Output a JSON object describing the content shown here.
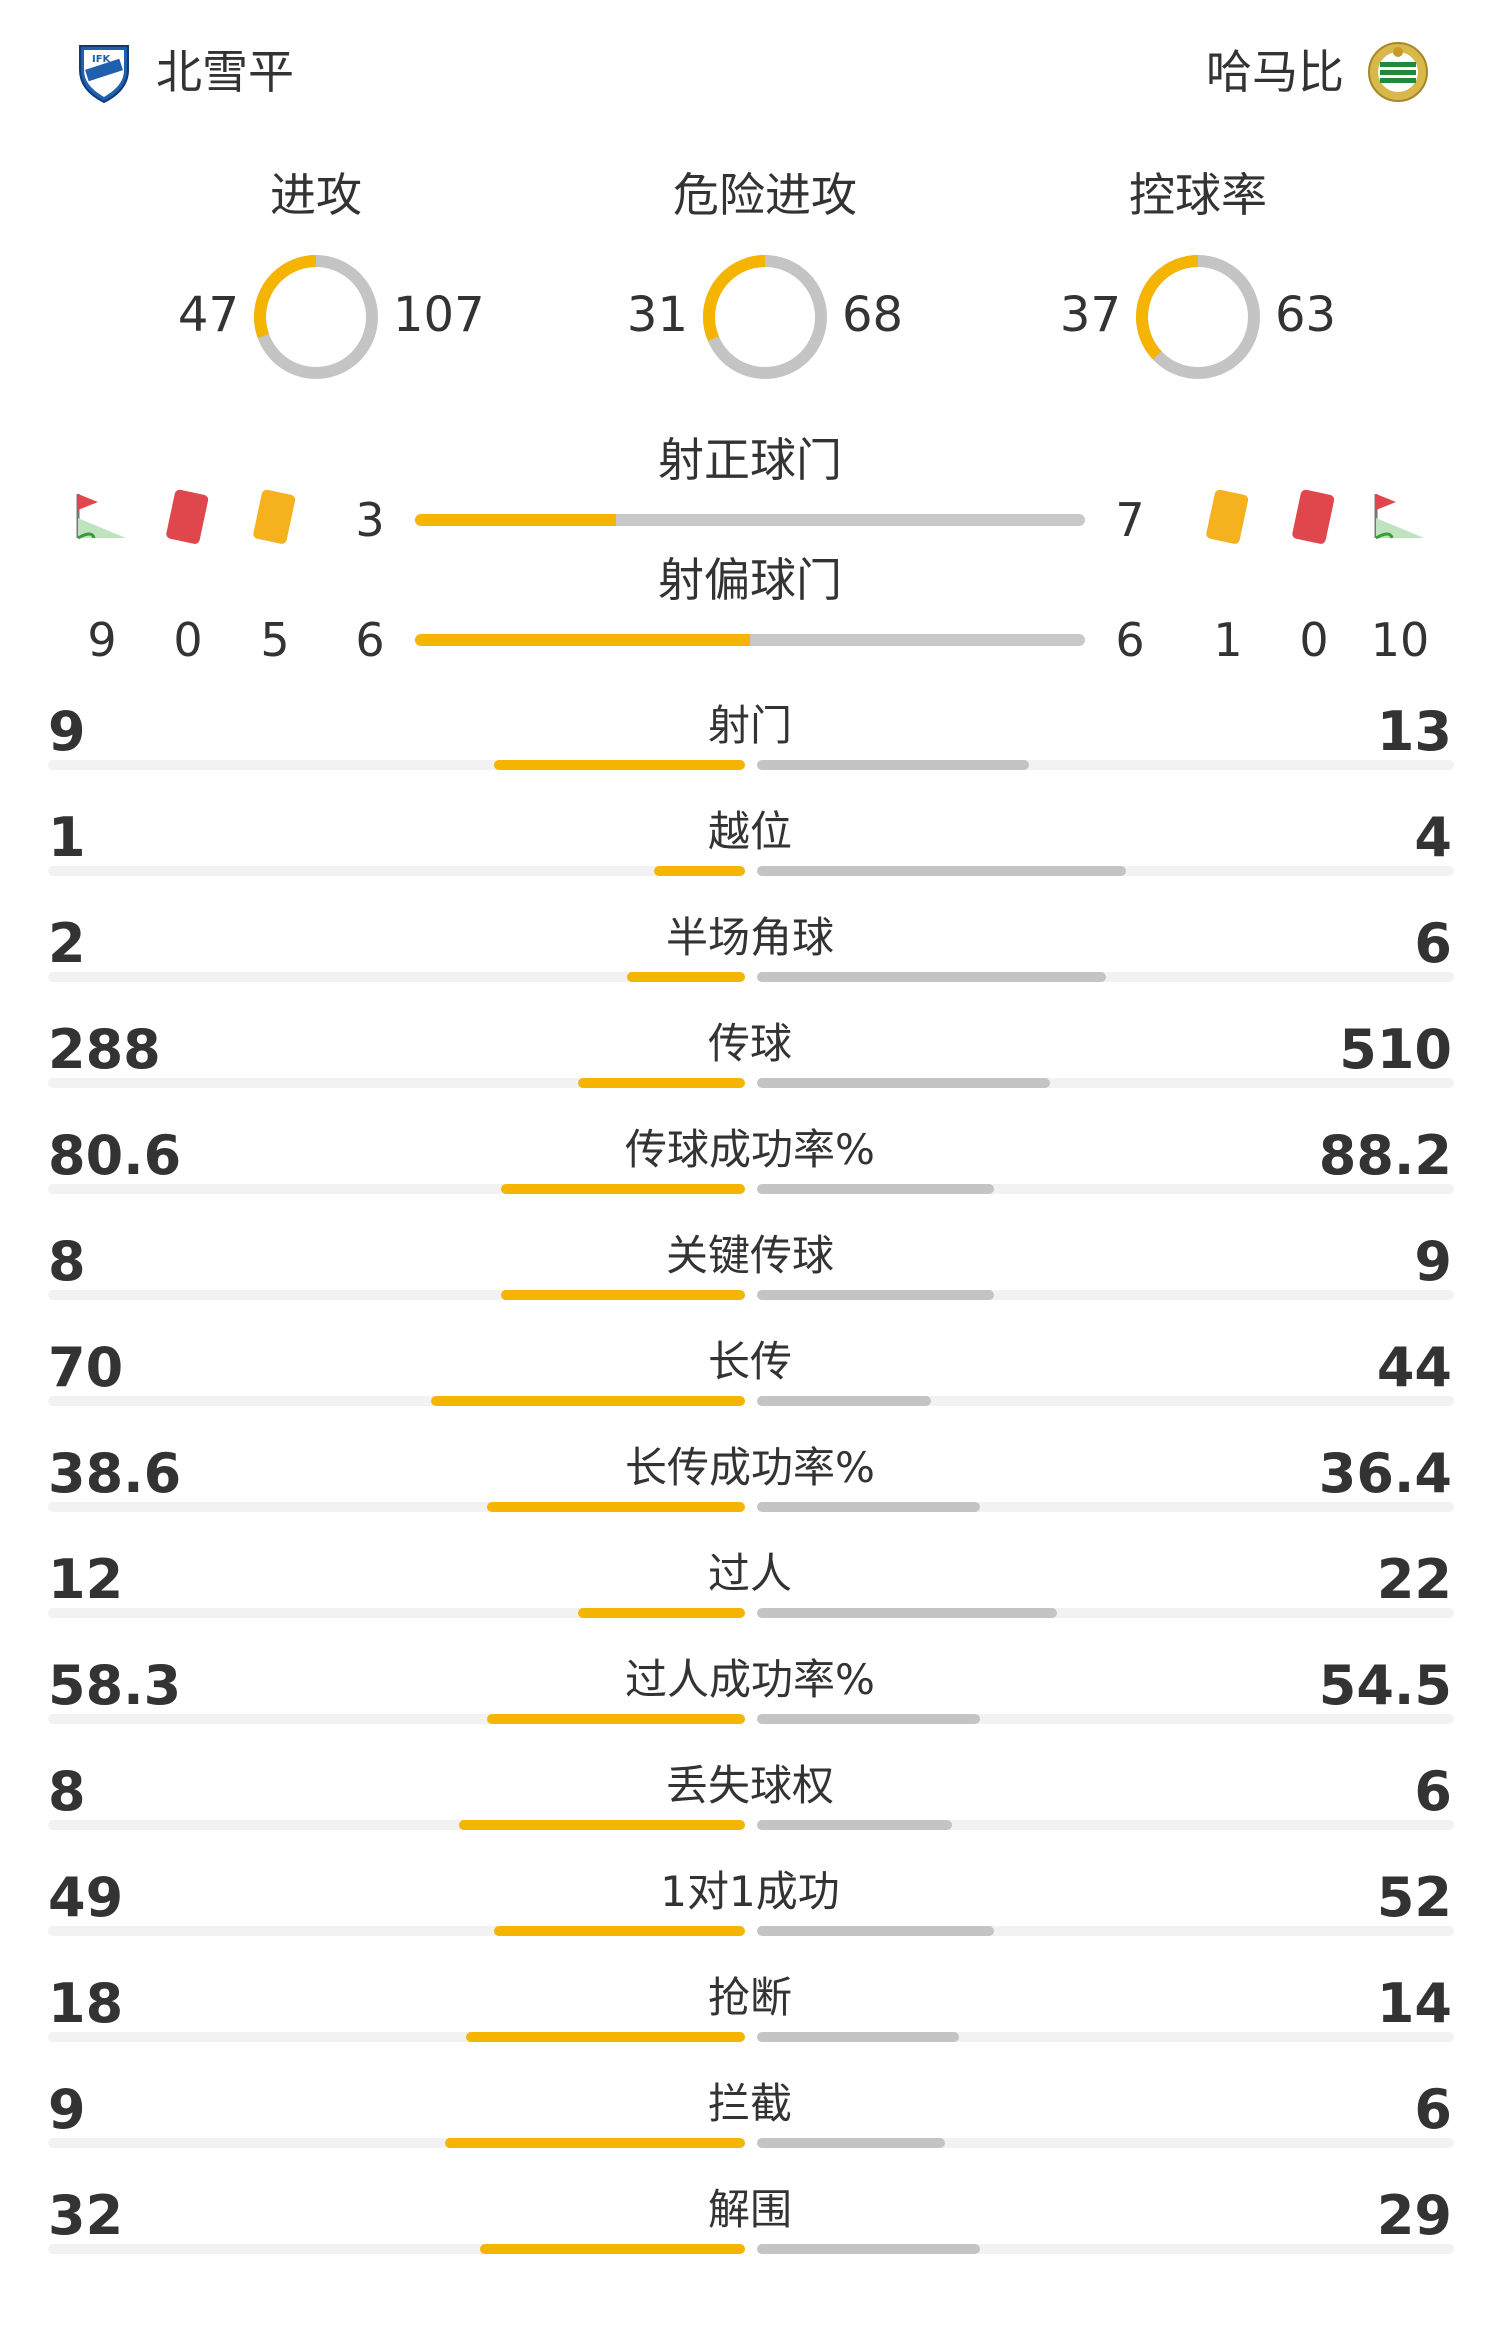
{
  "header": {
    "home_team": "北雪平",
    "away_team": "哈马比",
    "home_crest_icon": "norrkoping-crest-icon",
    "away_crest_icon": "hammarby-crest-icon"
  },
  "colors": {
    "home": "#f4b400",
    "away": "#c4c4c4",
    "track": "#f2f2f2"
  },
  "donuts": [
    {
      "label": "进攻",
      "home": "47",
      "away": "107",
      "home_val": 47,
      "away_val": 107
    },
    {
      "label": "危险进攻",
      "home": "31",
      "away": "68",
      "home_val": 31,
      "away_val": 68
    },
    {
      "label": "控球率",
      "home": "37",
      "away": "63",
      "home_val": 37,
      "away_val": 63
    }
  ],
  "shots": {
    "on_target": {
      "label": "射正球门",
      "home": "3",
      "away": "7",
      "home_val": 3,
      "away_val": 7
    },
    "off_target": {
      "label": "射偏球门",
      "home": "6",
      "away": "6",
      "home_val": 6,
      "away_val": 6
    }
  },
  "side_stats": {
    "home": {
      "corners": "9",
      "red_cards": "0",
      "yellow_cards": "5"
    },
    "away": {
      "yellow_cards": "1",
      "red_cards": "0",
      "corners": "10"
    },
    "icons": {
      "corner": "corner-flag-icon",
      "red": "red-card-icon",
      "yellow": "yellow-card-icon"
    }
  },
  "stats": [
    {
      "label": "射门",
      "home": "9",
      "away": "13",
      "home_frac": 0.36,
      "away_frac": 0.39
    },
    {
      "label": "越位",
      "home": "1",
      "away": "4",
      "home_frac": 0.13,
      "away_frac": 0.53
    },
    {
      "label": "半场角球",
      "home": "2",
      "away": "6",
      "home_frac": 0.17,
      "away_frac": 0.5
    },
    {
      "label": "传球",
      "home": "288",
      "away": "510",
      "home_frac": 0.24,
      "away_frac": 0.42
    },
    {
      "label": "传球成功率%",
      "home": "80.6",
      "away": "88.2",
      "home_frac": 0.35,
      "away_frac": 0.34
    },
    {
      "label": "关键传球",
      "home": "8",
      "away": "9",
      "home_frac": 0.35,
      "away_frac": 0.34
    },
    {
      "label": "长传",
      "home": "70",
      "away": "44",
      "home_frac": 0.45,
      "away_frac": 0.25
    },
    {
      "label": "长传成功率%",
      "home": "38.6",
      "away": "36.4",
      "home_frac": 0.37,
      "away_frac": 0.32
    },
    {
      "label": "过人",
      "home": "12",
      "away": "22",
      "home_frac": 0.24,
      "away_frac": 0.43
    },
    {
      "label": "过人成功率%",
      "home": "58.3",
      "away": "54.5",
      "home_frac": 0.37,
      "away_frac": 0.32
    },
    {
      "label": "丢失球权",
      "home": "8",
      "away": "6",
      "home_frac": 0.41,
      "away_frac": 0.28
    },
    {
      "label": "1对1成功",
      "home": "49",
      "away": "52",
      "home_frac": 0.36,
      "away_frac": 0.34
    },
    {
      "label": "抢断",
      "home": "18",
      "away": "14",
      "home_frac": 0.4,
      "away_frac": 0.29
    },
    {
      "label": "拦截",
      "home": "9",
      "away": "6",
      "home_frac": 0.43,
      "away_frac": 0.27
    },
    {
      "label": "解围",
      "home": "32",
      "away": "29",
      "home_frac": 0.38,
      "away_frac": 0.32
    }
  ]
}
